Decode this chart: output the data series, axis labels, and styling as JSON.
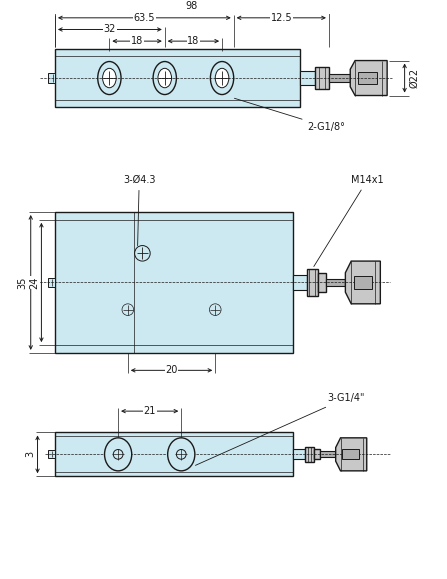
{
  "bg_color": "#ffffff",
  "fill_color": "#cce8f0",
  "line_color": "#1a1a1a",
  "gray1": "#c8c8c8",
  "gray2": "#b0b0b0",
  "gray3": "#989898",
  "font_size": 7.0,
  "lw_main": 1.0,
  "lw_thin": 0.5,
  "annotations": {
    "top": {
      "dim_98": "98",
      "dim_635": "63.5",
      "dim_32": "32",
      "dim_18a": "18",
      "dim_18b": "18",
      "dim_125": "12.5",
      "dim_22": "Ø22",
      "label_2g18": "2-G1/8°"
    },
    "front": {
      "dim_304": "3-Ø4.3",
      "dim_m14": "M14x1",
      "dim_35": "35",
      "dim_24": "24",
      "dim_20": "20"
    },
    "side": {
      "dim_21": "21",
      "dim_3g14": "3-G1/4\"",
      "dim_3": "3"
    }
  }
}
